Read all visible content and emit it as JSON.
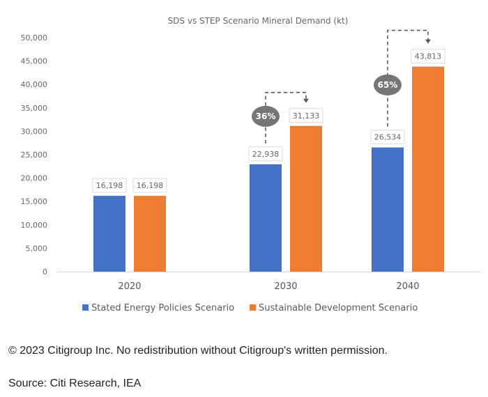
{
  "chart_data": {
    "type": "bar",
    "title": "SDS vs STEP Scenario Mineral Demand (kt)",
    "xlabel": "",
    "ylabel": "",
    "ylim": [
      0,
      50000
    ],
    "yticks": [
      0,
      5000,
      10000,
      15000,
      20000,
      25000,
      30000,
      35000,
      40000,
      45000,
      50000
    ],
    "ytick_labels": [
      "0",
      "5,000",
      "10,000",
      "15,000",
      "20,000",
      "25,000",
      "30,000",
      "35,000",
      "40,000",
      "45,000",
      "50,000"
    ],
    "grid": false,
    "categories": [
      "2020",
      "2030",
      "2040"
    ],
    "series": [
      {
        "name": "Stated Energy Policies Scenario",
        "color": "#4472C4",
        "values": [
          16198,
          22938,
          26534
        ],
        "labels": [
          "16,198",
          "22,938",
          "26,534"
        ]
      },
      {
        "name": "Sustainable Development Scenario",
        "color": "#ED7D31",
        "values": [
          16198,
          31133,
          43813
        ],
        "labels": [
          "16,198",
          "31,133",
          "43,813"
        ]
      }
    ],
    "annotations": [
      {
        "category": "2030",
        "text": "36%",
        "from_series": 0,
        "to_series": 1
      },
      {
        "category": "2040",
        "text": "65%",
        "from_series": 0,
        "to_series": 1
      }
    ],
    "legend_position": "bottom"
  },
  "footer": {
    "copyright": "© 2023 Citigroup Inc. No redistribution without Citigroup's written permission.",
    "source": "Source: Citi Research, IEA"
  },
  "colors": {
    "annotation_bubble": "#757575",
    "axis_line": "#d9d9d9",
    "label_border": "#d9d9d9"
  }
}
